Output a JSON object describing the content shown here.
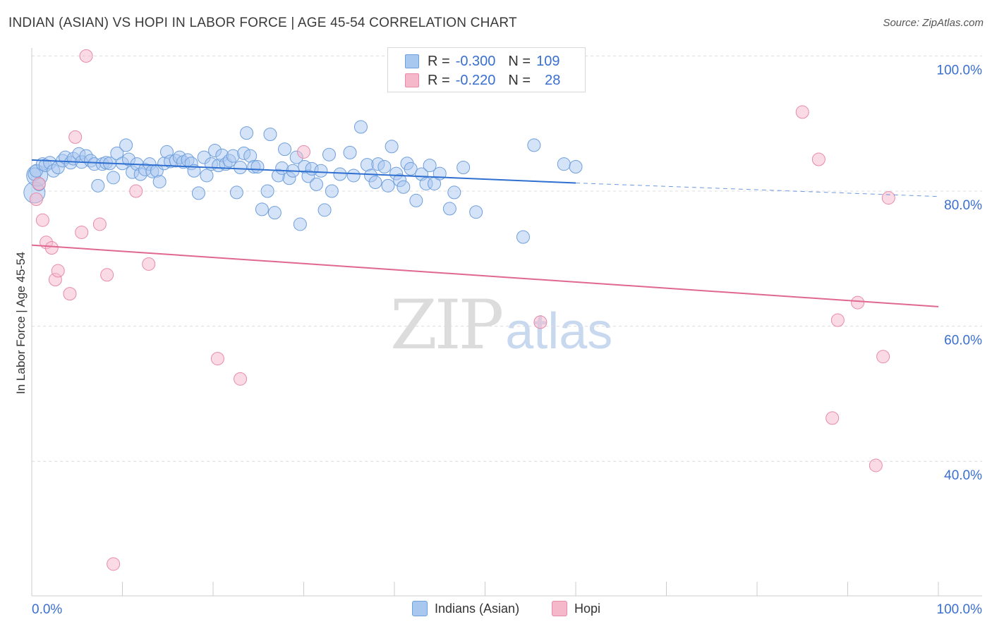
{
  "title": "INDIAN (ASIAN) VS HOPI IN LABOR FORCE | AGE 45-54 CORRELATION CHART",
  "source": "Source: ZipAtlas.com",
  "watermark": {
    "zip": "ZIP",
    "atlas": "atlas"
  },
  "legend": {
    "rows": [
      {
        "r_label": "R =",
        "r_value": "-0.300",
        "n_label": "N =",
        "n_value": "109",
        "color": "#a9c8f0"
      },
      {
        "r_label": "R =",
        "r_value": "-0.220",
        "n_label": "N =",
        "n_value": "28",
        "color": "#f5b8cb"
      }
    ]
  },
  "chart_data": {
    "type": "scatter",
    "title": "INDIAN (ASIAN) VS HOPI IN LABOR FORCE | AGE 45-54 CORRELATION CHART",
    "xlabel": "",
    "ylabel": "In Labor Force | Age 45-54",
    "xlim": [
      0,
      100
    ],
    "ylim": [
      20,
      102
    ],
    "x_tick_labels": [
      "0.0%",
      "100.0%"
    ],
    "y_ticks": [
      {
        "value": 100,
        "label": "100.0%"
      },
      {
        "value": 80,
        "label": "80.0%"
      },
      {
        "value": 60,
        "label": "60.0%"
      },
      {
        "value": 40,
        "label": "40.0%"
      }
    ],
    "grid": "horizontal dashed",
    "legend_position": "bottom-center",
    "series": [
      {
        "name": "Indians (Asian)",
        "color": "#a9c8f0",
        "stroke": "#6f9fdc",
        "line_color": "#2f6fd0",
        "trend": {
          "x0": 0,
          "y0": 84.6,
          "x1": 60,
          "y1": 81.2,
          "dash_to_x": 100,
          "dash_to_y": 79.2
        },
        "points": [
          [
            0.3,
            82.5
          ],
          [
            0.5,
            83.0
          ],
          [
            0.8,
            81.0
          ],
          [
            1.2,
            84.0
          ],
          [
            1.5,
            83.8
          ],
          [
            2.0,
            84.2
          ],
          [
            2.4,
            83.0
          ],
          [
            2.9,
            83.5
          ],
          [
            3.4,
            84.5
          ],
          [
            3.7,
            85.0
          ],
          [
            4.3,
            84.2
          ],
          [
            4.6,
            84.8
          ],
          [
            5.2,
            85.5
          ],
          [
            5.5,
            84.3
          ],
          [
            6.0,
            85.2
          ],
          [
            6.5,
            84.5
          ],
          [
            6.9,
            84.0
          ],
          [
            7.3,
            80.8
          ],
          [
            7.8,
            84.0
          ],
          [
            8.2,
            84.2
          ],
          [
            8.6,
            84.1
          ],
          [
            9.0,
            82.0
          ],
          [
            9.4,
            85.6
          ],
          [
            10.0,
            84.1
          ],
          [
            10.4,
            86.8
          ],
          [
            10.7,
            84.7
          ],
          [
            11.1,
            82.8
          ],
          [
            11.6,
            84.0
          ],
          [
            12.0,
            82.5
          ],
          [
            12.5,
            83.2
          ],
          [
            13.0,
            84.0
          ],
          [
            13.3,
            82.9
          ],
          [
            13.8,
            83.0
          ],
          [
            14.1,
            81.4
          ],
          [
            14.6,
            84.1
          ],
          [
            14.9,
            85.8
          ],
          [
            15.3,
            84.4
          ],
          [
            15.9,
            84.5
          ],
          [
            16.3,
            85.0
          ],
          [
            16.7,
            84.3
          ],
          [
            17.2,
            84.6
          ],
          [
            17.6,
            84.1
          ],
          [
            17.9,
            83.0
          ],
          [
            18.4,
            79.7
          ],
          [
            19.0,
            85.0
          ],
          [
            19.3,
            82.3
          ],
          [
            19.8,
            84.0
          ],
          [
            20.2,
            86.0
          ],
          [
            20.6,
            83.8
          ],
          [
            21.0,
            85.3
          ],
          [
            21.4,
            84.0
          ],
          [
            21.8,
            84.5
          ],
          [
            22.2,
            85.2
          ],
          [
            22.6,
            79.8
          ],
          [
            23.0,
            83.5
          ],
          [
            23.4,
            85.6
          ],
          [
            23.7,
            88.6
          ],
          [
            24.1,
            85.2
          ],
          [
            24.5,
            83.6
          ],
          [
            24.9,
            83.6
          ],
          [
            25.4,
            77.3
          ],
          [
            26.0,
            80.0
          ],
          [
            26.3,
            88.4
          ],
          [
            26.8,
            76.8
          ],
          [
            27.2,
            82.3
          ],
          [
            27.6,
            83.4
          ],
          [
            27.9,
            86.2
          ],
          [
            28.4,
            81.9
          ],
          [
            28.8,
            83.0
          ],
          [
            29.2,
            85.0
          ],
          [
            29.6,
            75.1
          ],
          [
            30.1,
            83.6
          ],
          [
            30.5,
            82.2
          ],
          [
            30.9,
            83.3
          ],
          [
            31.4,
            81.0
          ],
          [
            31.9,
            83.0
          ],
          [
            32.3,
            77.2
          ],
          [
            32.8,
            85.4
          ],
          [
            33.1,
            80.0
          ],
          [
            34.0,
            82.5
          ],
          [
            35.1,
            85.7
          ],
          [
            35.5,
            82.3
          ],
          [
            36.3,
            89.5
          ],
          [
            37.0,
            83.9
          ],
          [
            37.4,
            82.3
          ],
          [
            37.9,
            81.3
          ],
          [
            38.2,
            84.0
          ],
          [
            38.9,
            83.6
          ],
          [
            39.3,
            80.8
          ],
          [
            39.7,
            86.6
          ],
          [
            40.2,
            82.6
          ],
          [
            40.6,
            81.6
          ],
          [
            41.0,
            80.6
          ],
          [
            41.4,
            84.1
          ],
          [
            41.8,
            83.3
          ],
          [
            42.4,
            78.6
          ],
          [
            43.0,
            82.5
          ],
          [
            43.5,
            81.1
          ],
          [
            43.9,
            83.8
          ],
          [
            44.4,
            81.1
          ],
          [
            45.0,
            82.6
          ],
          [
            46.1,
            77.4
          ],
          [
            46.6,
            79.8
          ],
          [
            47.6,
            83.5
          ],
          [
            49.0,
            76.9
          ],
          [
            54.2,
            73.2
          ],
          [
            55.4,
            86.8
          ],
          [
            58.7,
            84.0
          ],
          [
            60.0,
            83.6
          ]
        ],
        "big_points": [
          [
            0.3,
            79.8
          ],
          [
            0.6,
            82.3
          ]
        ]
      },
      {
        "name": "Hopi",
        "color": "#f5b8cb",
        "stroke": "#e88aa8",
        "line_color": "#e06890",
        "trend": {
          "x0": 0,
          "y0": 72.0,
          "x1": 100,
          "y1": 62.9
        },
        "points": [
          [
            0.5,
            78.8
          ],
          [
            0.8,
            81.1
          ],
          [
            1.2,
            75.7
          ],
          [
            1.6,
            72.4
          ],
          [
            2.2,
            71.6
          ],
          [
            2.6,
            66.9
          ],
          [
            2.9,
            68.2
          ],
          [
            4.2,
            64.8
          ],
          [
            4.8,
            88.0
          ],
          [
            5.5,
            73.9
          ],
          [
            6.0,
            100.0
          ],
          [
            7.5,
            75.1
          ],
          [
            8.3,
            67.6
          ],
          [
            9.0,
            24.8
          ],
          [
            11.5,
            80.0
          ],
          [
            12.9,
            69.2
          ],
          [
            20.5,
            55.2
          ],
          [
            23.0,
            52.2
          ],
          [
            30.0,
            85.8
          ],
          [
            56.1,
            60.6
          ],
          [
            85.0,
            91.7
          ],
          [
            86.8,
            84.7
          ],
          [
            88.3,
            46.4
          ],
          [
            88.9,
            60.9
          ],
          [
            91.1,
            63.5
          ],
          [
            93.1,
            39.4
          ],
          [
            93.9,
            55.5
          ],
          [
            94.5,
            79.0
          ]
        ]
      }
    ]
  }
}
